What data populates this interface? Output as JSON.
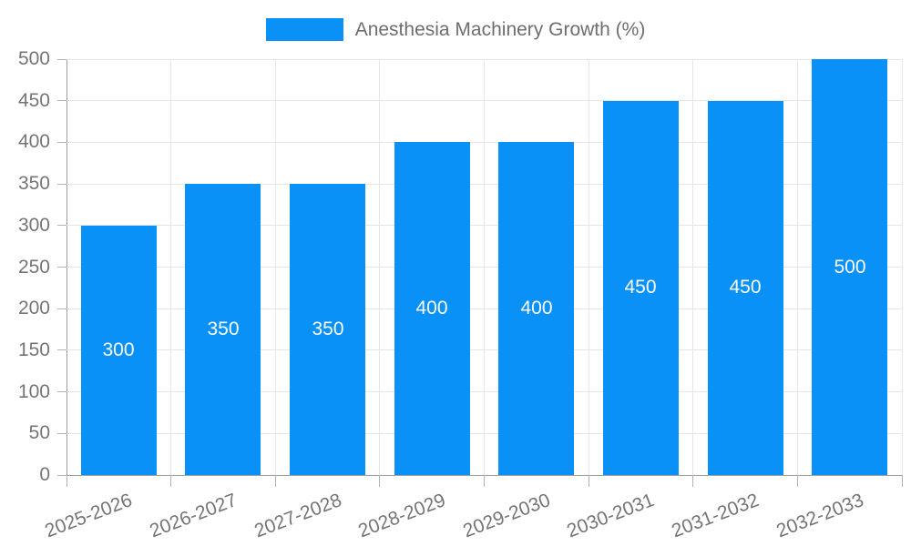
{
  "legend": {
    "label": "Anesthesia Machinery Growth (%)",
    "swatch_color": "#0991f7"
  },
  "chart_data": {
    "type": "bar",
    "title": "Anesthesia Machinery Growth (%)",
    "categories": [
      "2025-2026",
      "2026-2027",
      "2027-2028",
      "2028-2029",
      "2029-2030",
      "2030-2031",
      "2031-2032",
      "2032-2033"
    ],
    "values": [
      300,
      350,
      350,
      400,
      400,
      450,
      450,
      500
    ],
    "xlabel": "",
    "ylabel": "",
    "ylim": [
      0,
      500
    ],
    "yticks": [
      0,
      50,
      100,
      150,
      200,
      250,
      300,
      350,
      400,
      450,
      500
    ],
    "grid": true,
    "legend_position": "top",
    "bar_color": "#0991f7",
    "bar_label_color": "#ffffff",
    "grid_color": "#e6e6e6",
    "axis_color": "#9e9e9e",
    "tick_text_color": "#757575",
    "x_label_rotation_deg": -21
  }
}
